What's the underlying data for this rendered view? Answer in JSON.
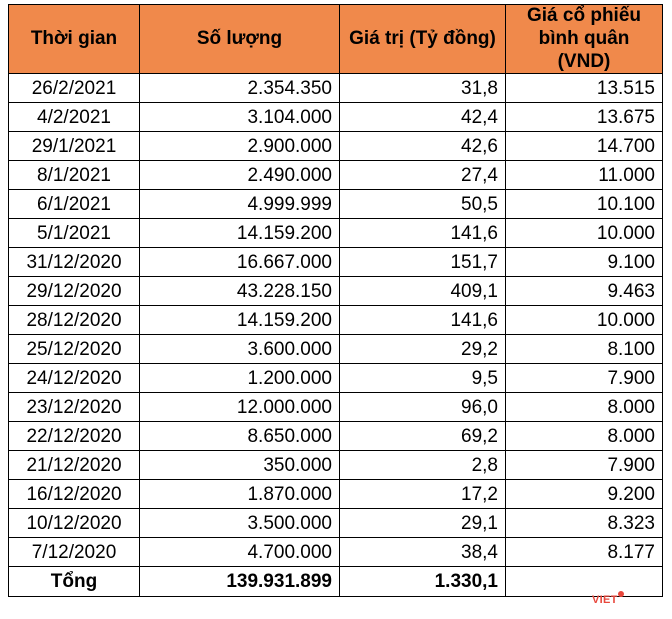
{
  "headers": [
    "Thời gian",
    "Số lượng",
    "Giá trị (Tỷ đồng)",
    "Giá cổ phiếu bình quân (VND)"
  ],
  "rows": [
    {
      "date": "26/2/2021",
      "qty": "2.354.350",
      "value": "31,8",
      "price": "13.515"
    },
    {
      "date": "4/2/2021",
      "qty": "3.104.000",
      "value": "42,4",
      "price": "13.675"
    },
    {
      "date": "29/1/2021",
      "qty": "2.900.000",
      "value": "42,6",
      "price": "14.700"
    },
    {
      "date": "8/1/2021",
      "qty": "2.490.000",
      "value": "27,4",
      "price": "11.000"
    },
    {
      "date": "6/1/2021",
      "qty": "4.999.999",
      "value": "50,5",
      "price": "10.100"
    },
    {
      "date": "5/1/2021",
      "qty": "14.159.200",
      "value": "141,6",
      "price": "10.000"
    },
    {
      "date": "31/12/2020",
      "qty": "16.667.000",
      "value": "151,7",
      "price": "9.100"
    },
    {
      "date": "29/12/2020",
      "qty": "43.228.150",
      "value": "409,1",
      "price": "9.463"
    },
    {
      "date": "28/12/2020",
      "qty": "14.159.200",
      "value": "141,6",
      "price": "10.000"
    },
    {
      "date": "25/12/2020",
      "qty": "3.600.000",
      "value": "29,2",
      "price": "8.100"
    },
    {
      "date": "24/12/2020",
      "qty": "1.200.000",
      "value": "9,5",
      "price": "7.900"
    },
    {
      "date": "23/12/2020",
      "qty": "12.000.000",
      "value": "96,0",
      "price": "8.000"
    },
    {
      "date": "22/12/2020",
      "qty": "8.650.000",
      "value": "69,2",
      "price": "8.000"
    },
    {
      "date": "21/12/2020",
      "qty": "350.000",
      "value": "2,8",
      "price": "7.900"
    },
    {
      "date": "16/12/2020",
      "qty": "1.870.000",
      "value": "17,2",
      "price": "9.200"
    },
    {
      "date": "10/12/2020",
      "qty": "3.500.000",
      "value": "29,1",
      "price": "8.323"
    },
    {
      "date": "7/12/2020",
      "qty": "4.700.000",
      "value": "38,4",
      "price": "8.177"
    }
  ],
  "total": {
    "label": "Tổng",
    "qty": "139.931.899",
    "value": "1.330,1",
    "price": ""
  },
  "logo": {
    "text": "VIET",
    "color": "#e8473c"
  },
  "colors": {
    "header_bg": "#f0894b"
  }
}
